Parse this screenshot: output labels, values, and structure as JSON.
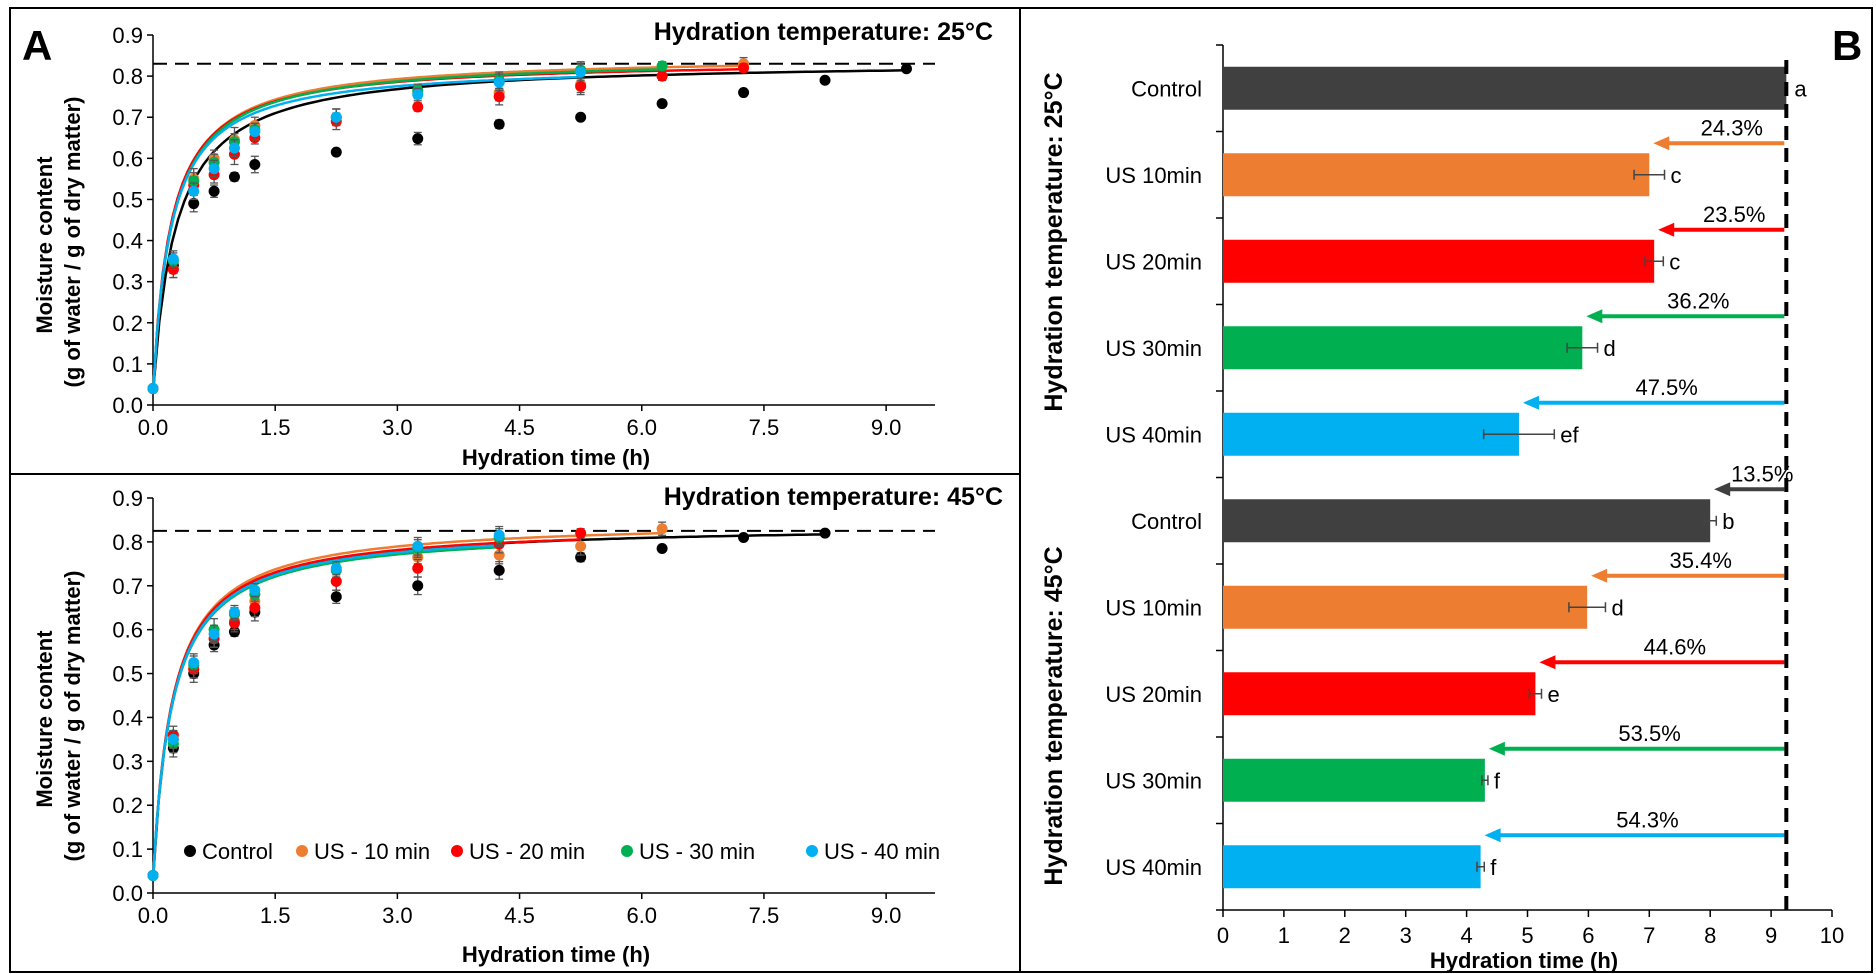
{
  "panel_a_label": "A",
  "panel_b_label": "B",
  "chart_data": [
    {
      "type": "scatter",
      "panel": "A (top)",
      "title": "Hydration temperature: 25°C",
      "xlabel": "Hydration time (h)",
      "ylabel": "Moisture content (g of water / g of dry matter)",
      "xlim": [
        0,
        9.6
      ],
      "ylim": [
        0,
        0.9
      ],
      "xticks": [
        "0.0",
        "1.5",
        "3.0",
        "4.5",
        "6.0",
        "7.5",
        "9.0"
      ],
      "yticks": [
        "0.0",
        "0.1",
        "0.2",
        "0.3",
        "0.4",
        "0.5",
        "0.6",
        "0.7",
        "0.8",
        "0.9"
      ],
      "dashed_reference_y": 0.83,
      "series": [
        {
          "name": "Control",
          "color": "#000000",
          "x": [
            0,
            0.25,
            0.5,
            0.75,
            1.0,
            1.25,
            2.25,
            3.25,
            4.25,
            5.25,
            6.25,
            7.25,
            8.25,
            9.25
          ],
          "y": [
            0.04,
            0.34,
            0.49,
            0.52,
            0.555,
            0.585,
            0.615,
            0.648,
            0.683,
            0.7,
            0.733,
            0.76,
            0.79,
            0.818
          ],
          "err": [
            0,
            0.02,
            0.02,
            0.015,
            0.01,
            0.02,
            0.005,
            0.015,
            0.01,
            0.005,
            0.005,
            0.005,
            0.005,
            0.005
          ],
          "fit_A": 0.03,
          "fit_B": 0.1,
          "fit_k": 3.3,
          "fit_xmax": 9.25
        },
        {
          "name": "US - 10 min",
          "color": "#ED7D31",
          "x": [
            0,
            0.25,
            0.5,
            0.75,
            1.0,
            1.25,
            2.25,
            3.25,
            4.25,
            5.25,
            6.25,
            7.25
          ],
          "y": [
            0.04,
            0.33,
            0.55,
            0.6,
            0.645,
            0.68,
            0.7,
            0.76,
            0.76,
            0.78,
            0.8,
            0.83
          ],
          "err": [
            0,
            0.02,
            0.025,
            0.02,
            0.03,
            0.02,
            0.02,
            0.015,
            0.02,
            0.02,
            0.01,
            0.015
          ],
          "fit_A": 0.03,
          "fit_B": 1.38,
          "fit_k": 1.4,
          "fit_xmax": 7.25
        },
        {
          "name": "US - 20 min",
          "color": "#FF0000",
          "x": [
            0,
            0.25,
            0.5,
            0.75,
            1.0,
            1.25,
            2.25,
            3.25,
            4.25,
            5.25,
            6.25,
            7.25
          ],
          "y": [
            0.04,
            0.33,
            0.535,
            0.56,
            0.61,
            0.65,
            0.69,
            0.725,
            0.75,
            0.775,
            0.8,
            0.82
          ],
          "err": [
            0,
            0.02,
            0.02,
            0.02,
            0.025,
            0.015,
            0.02,
            0.01,
            0.02,
            0.02,
            0.01,
            0.01
          ],
          "fit_A": 0.03,
          "fit_B": 1.38,
          "fit_k": 1.45,
          "fit_xmax": 7.25
        },
        {
          "name": "US - 30 min",
          "color": "#00B050",
          "x": [
            0,
            0.25,
            0.5,
            0.75,
            1.0,
            1.25,
            2.25,
            3.25,
            4.25,
            5.25,
            6.25
          ],
          "y": [
            0.04,
            0.35,
            0.545,
            0.59,
            0.64,
            0.67,
            0.7,
            0.765,
            0.79,
            0.815,
            0.825
          ],
          "err": [
            0,
            0.02,
            0.02,
            0.02,
            0.02,
            0.015,
            0.02,
            0.015,
            0.02,
            0.02,
            0.01
          ],
          "fit_A": 0.03,
          "fit_B": 1.44,
          "fit_k": 1.37,
          "fit_xmax": 6.25
        },
        {
          "name": "US - 40 min",
          "color": "#00B0F0",
          "x": [
            0,
            0.25,
            0.5,
            0.75,
            1.0,
            1.25,
            2.25,
            3.25,
            4.25,
            5.25
          ],
          "y": [
            0.04,
            0.355,
            0.52,
            0.575,
            0.625,
            0.665,
            0.7,
            0.755,
            0.785,
            0.81
          ],
          "err": [
            0,
            0.02,
            0.02,
            0.02,
            0.02,
            0.02,
            0.02,
            0.015,
            0.02,
            0.02
          ],
          "fit_A": 0.03,
          "fit_B": 1.4,
          "fit_k": 1.4,
          "fit_xmax": 5.25
        }
      ]
    },
    {
      "type": "scatter",
      "panel": "A (bottom)",
      "title": "Hydration temperature: 45°C",
      "xlabel": "Hydration time (h)",
      "ylabel": "Moisture content (g of water / g of dry matter)",
      "xlim": [
        0,
        9.6
      ],
      "ylim": [
        0,
        0.9
      ],
      "xticks": [
        "0.0",
        "1.5",
        "3.0",
        "4.5",
        "6.0",
        "7.5",
        "9.0"
      ],
      "yticks": [
        "0.0",
        "0.1",
        "0.2",
        "0.3",
        "0.4",
        "0.5",
        "0.6",
        "0.7",
        "0.8",
        "0.9"
      ],
      "dashed_reference_y": 0.825,
      "legend": [
        "Control",
        "US - 10 min",
        "US - 20 min",
        "US - 30 min",
        "US - 40 min"
      ],
      "series": [
        {
          "name": "Control",
          "color": "#000000",
          "x": [
            0,
            0.25,
            0.5,
            0.75,
            1.0,
            1.25,
            2.25,
            3.25,
            4.25,
            5.25,
            6.25,
            7.25,
            8.25
          ],
          "y": [
            0.04,
            0.33,
            0.5,
            0.565,
            0.595,
            0.64,
            0.675,
            0.7,
            0.735,
            0.765,
            0.785,
            0.81,
            0.82
          ],
          "err": [
            0,
            0.02,
            0.02,
            0.015,
            0.01,
            0.02,
            0.015,
            0.02,
            0.02,
            0.01,
            0.005,
            0.005,
            0.005
          ],
          "fit_A": 0.03,
          "fit_B": 1.12,
          "fit_k": 1.3,
          "fit_xmax": 8.25
        },
        {
          "name": "US - 10 min",
          "color": "#ED7D31",
          "x": [
            0,
            0.25,
            0.5,
            0.75,
            1.0,
            1.25,
            2.25,
            3.25,
            4.25,
            5.25,
            6.25
          ],
          "y": [
            0.04,
            0.35,
            0.51,
            0.58,
            0.62,
            0.665,
            0.71,
            0.765,
            0.77,
            0.79,
            0.83
          ],
          "err": [
            0,
            0.02,
            0.02,
            0.02,
            0.02,
            0.02,
            0.02,
            0.015,
            0.02,
            0.02,
            0.015
          ],
          "fit_A": 0.03,
          "fit_B": 1.28,
          "fit_k": 1.32,
          "fit_xmax": 6.25
        },
        {
          "name": "US - 20 min",
          "color": "#FF0000",
          "x": [
            0,
            0.25,
            0.5,
            0.75,
            1.0,
            1.25,
            2.25,
            3.25,
            4.25,
            5.25
          ],
          "y": [
            0.04,
            0.36,
            0.51,
            0.58,
            0.615,
            0.65,
            0.71,
            0.74,
            0.795,
            0.82
          ],
          "err": [
            0,
            0.02,
            0.02,
            0.02,
            0.02,
            0.02,
            0.02,
            0.02,
            0.02,
            0.01
          ],
          "fit_A": 0.03,
          "fit_B": 1.38,
          "fit_k": 1.33,
          "fit_xmax": 5.25
        },
        {
          "name": "US - 30 min",
          "color": "#00B050",
          "x": [
            0,
            0.25,
            0.5,
            0.75,
            1.0,
            1.25,
            2.25,
            3.25,
            4.25
          ],
          "y": [
            0.04,
            0.34,
            0.52,
            0.6,
            0.635,
            0.68,
            0.735,
            0.785,
            0.81
          ],
          "err": [
            0,
            0.02,
            0.02,
            0.025,
            0.015,
            0.015,
            0.015,
            0.02,
            0.02
          ],
          "fit_A": 0.03,
          "fit_B": 1.6,
          "fit_k": 1.3,
          "fit_xmax": 4.25
        },
        {
          "name": "US - 40 min",
          "color": "#00B0F0",
          "x": [
            0,
            0.25,
            0.5,
            0.75,
            1.0,
            1.25,
            2.25,
            3.25,
            4.25
          ],
          "y": [
            0.04,
            0.35,
            0.525,
            0.59,
            0.64,
            0.69,
            0.74,
            0.79,
            0.815
          ],
          "err": [
            0,
            0.02,
            0.02,
            0.02,
            0.015,
            0.015,
            0.015,
            0.02,
            0.02
          ],
          "fit_A": 0.03,
          "fit_B": 1.6,
          "fit_k": 1.3,
          "fit_xmax": 4.25
        }
      ]
    },
    {
      "type": "bar",
      "orientation": "horizontal",
      "panel": "B",
      "xlabel": "Hydration time (h)",
      "xlim": [
        0,
        10
      ],
      "xticks": [
        "0",
        "1",
        "2",
        "3",
        "4",
        "5",
        "6",
        "7",
        "8",
        "9",
        "10"
      ],
      "reference_line_x": 9.25,
      "groups": [
        {
          "label": "Hydration temperature: 25°C",
          "bars": [
            {
              "category": "Control",
              "value": 9.25,
              "err": 0,
              "letter": "a",
              "reduction": "",
              "color": "#404040"
            },
            {
              "category": "US 10min",
              "value": 7.0,
              "err": 0.25,
              "letter": "c",
              "reduction": "24.3%",
              "color": "#ED7D31"
            },
            {
              "category": "US 20min",
              "value": 7.08,
              "err": 0.15,
              "letter": "c",
              "reduction": "23.5%",
              "color": "#FF0000"
            },
            {
              "category": "US 30min",
              "value": 5.9,
              "err": 0.25,
              "letter": "d",
              "reduction": "36.2%",
              "color": "#00B050"
            },
            {
              "category": "US 40min",
              "value": 4.86,
              "err": 0.58,
              "letter": "ef",
              "reduction": "47.5%",
              "color": "#00B0F0"
            }
          ]
        },
        {
          "label": "Hydration temperature: 45°C",
          "bars": [
            {
              "category": "Control",
              "value": 8.0,
              "err": 0.1,
              "letter": "b",
              "reduction": "13.5%",
              "color": "#404040"
            },
            {
              "category": "US 10min",
              "value": 5.98,
              "err": 0.3,
              "letter": "d",
              "reduction": "35.4%",
              "color": "#ED7D31"
            },
            {
              "category": "US 20min",
              "value": 5.13,
              "err": 0.1,
              "letter": "e",
              "reduction": "44.6%",
              "color": "#FF0000"
            },
            {
              "category": "US 30min",
              "value": 4.3,
              "err": 0.05,
              "letter": "f",
              "reduction": "53.5%",
              "color": "#00B050"
            },
            {
              "category": "US 40min",
              "value": 4.23,
              "err": 0.06,
              "letter": "f",
              "reduction": "54.3%",
              "color": "#00B0F0"
            }
          ]
        }
      ]
    }
  ]
}
